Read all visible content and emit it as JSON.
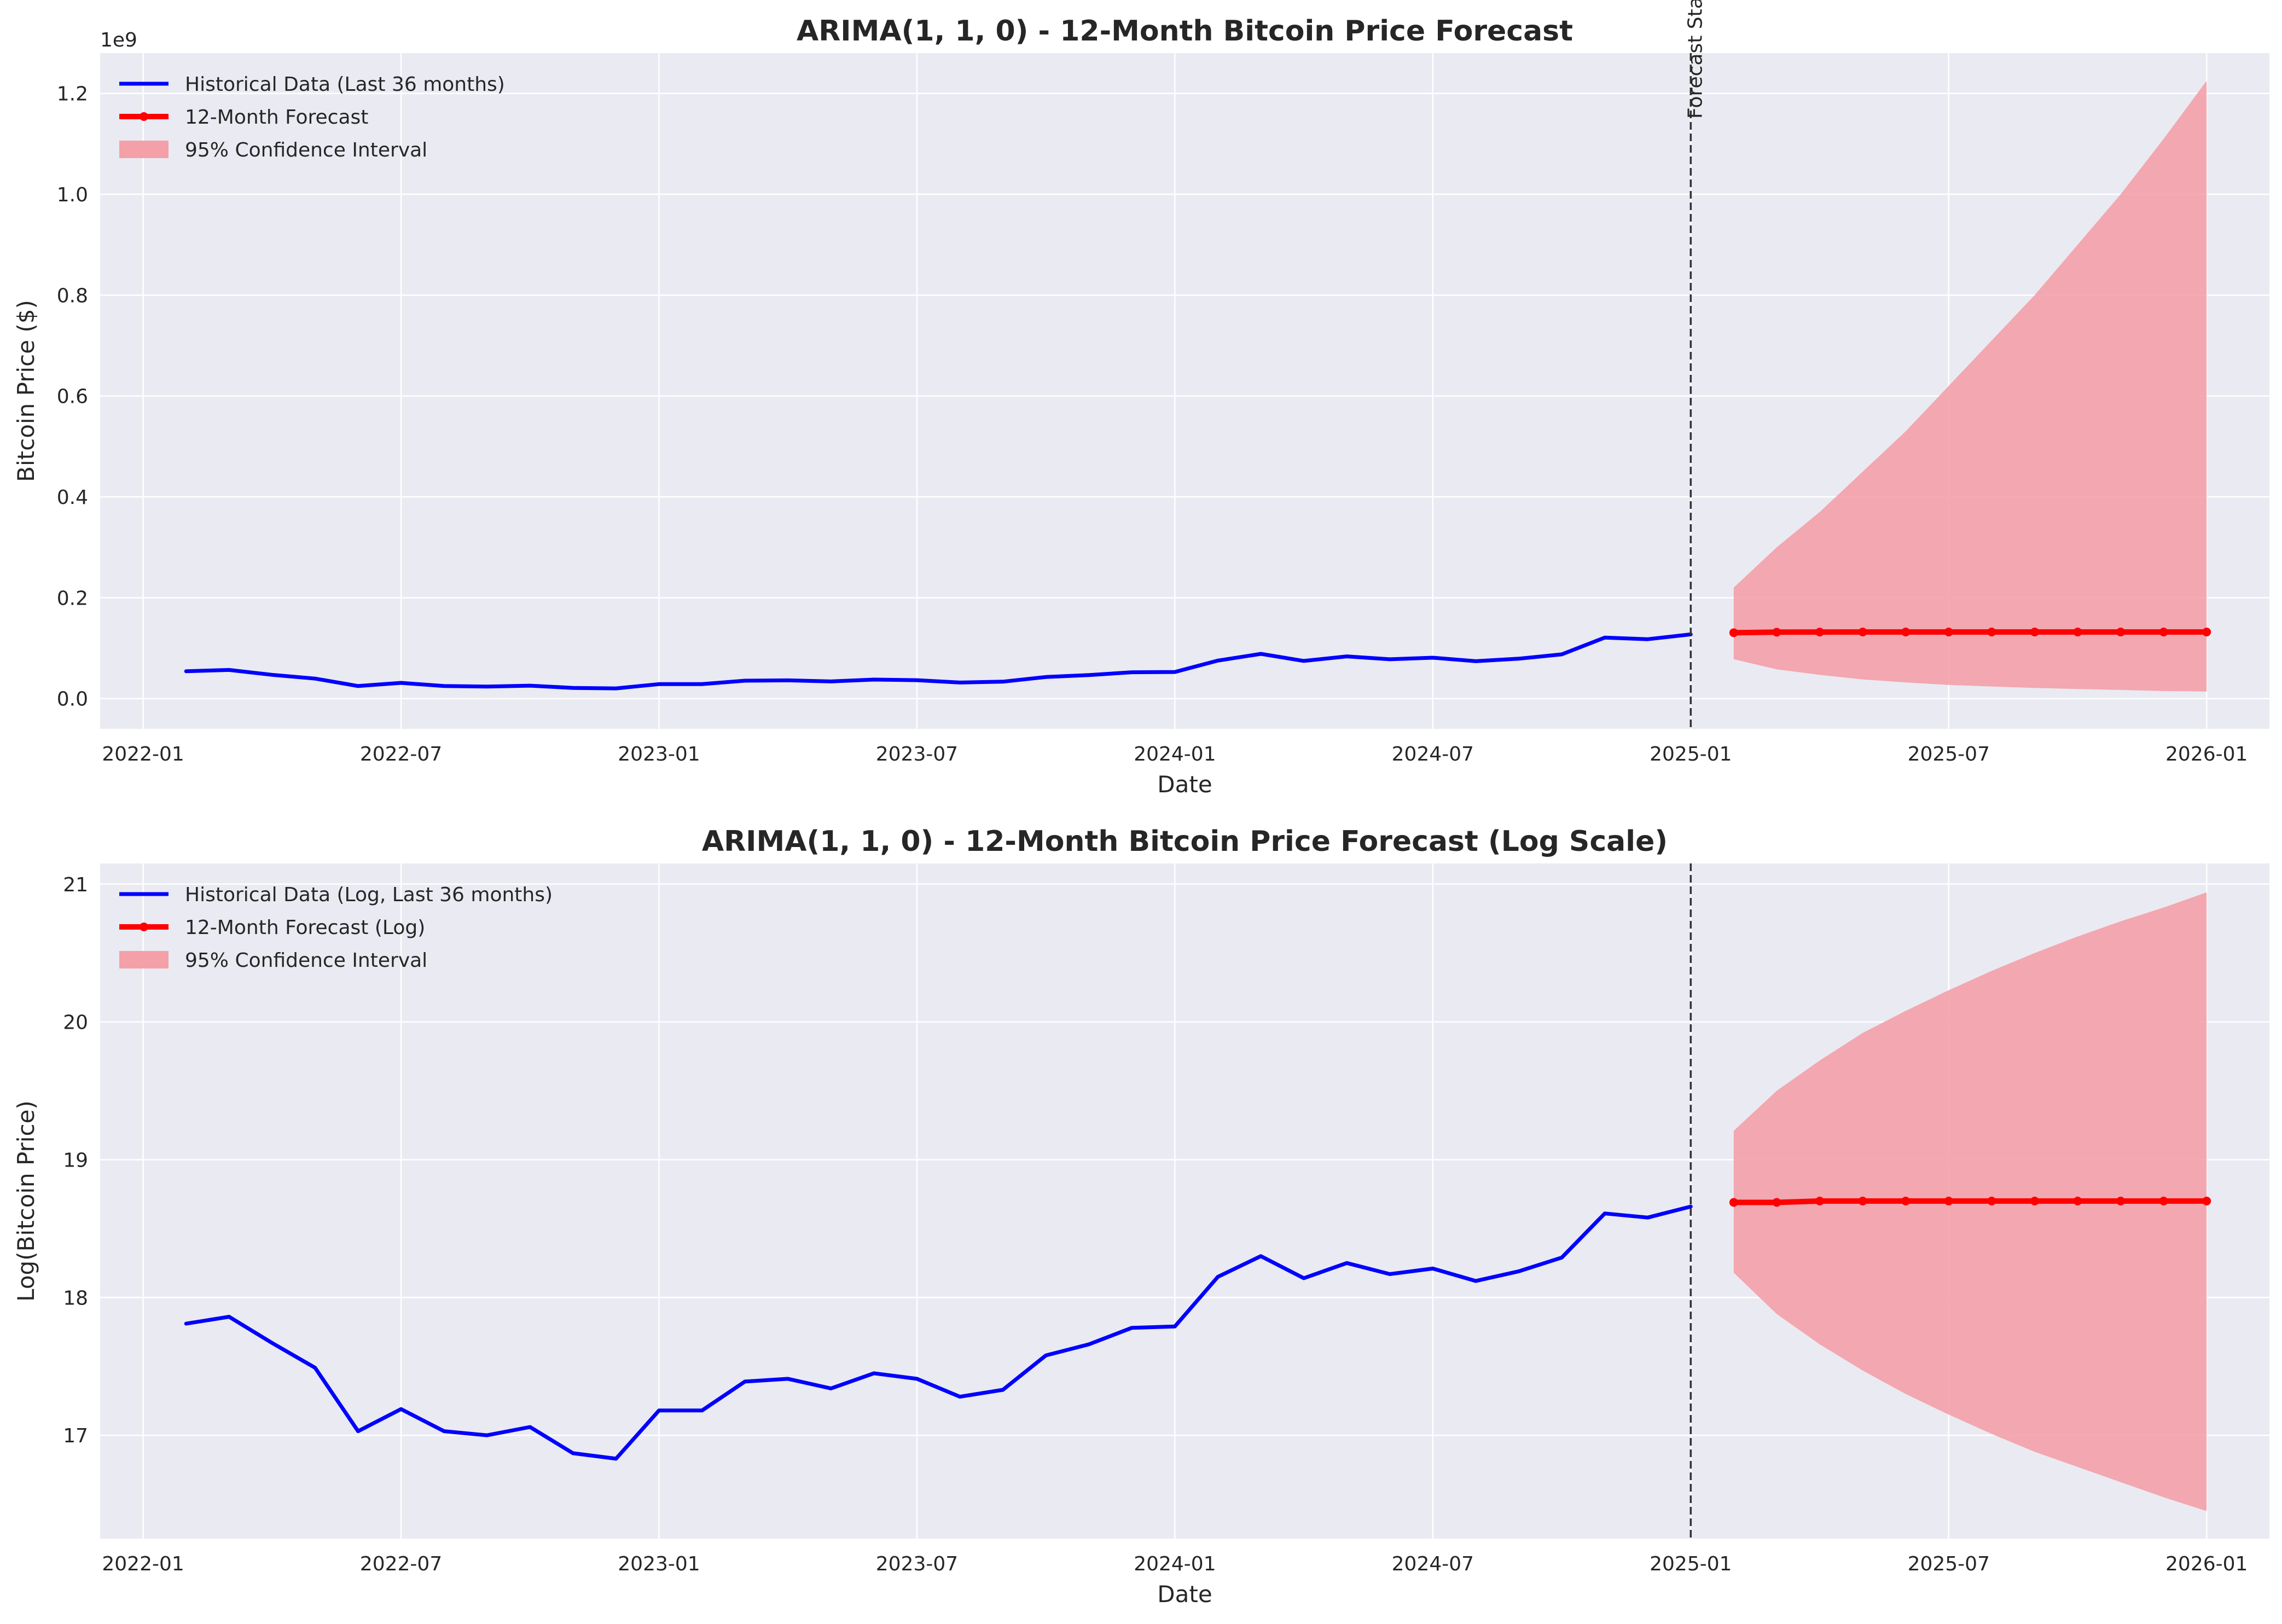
{
  "colors": {
    "axes_bg": "#eaeaf2",
    "grid": "#ffffff",
    "historical": "#0000ff",
    "forecast": "#ff0000",
    "ci_fill": "#f4a0a8",
    "vline": "#333333"
  },
  "chart_data": [
    {
      "type": "line",
      "title": "ARIMA(1, 1, 0) - 12-Month Bitcoin Price Forecast",
      "xlabel": "Date",
      "ylabel": "Bitcoin Price ($)",
      "y_offset_label": "1e9",
      "x_ticks": [
        "2022-01",
        "2022-07",
        "2023-01",
        "2023-07",
        "2024-01",
        "2024-07",
        "2025-01",
        "2025-07",
        "2026-01"
      ],
      "y_ticks": [
        "0.0",
        "0.2",
        "0.4",
        "0.6",
        "0.8",
        "1.0",
        "1.2"
      ],
      "ylim": [
        -0.06,
        1.28
      ],
      "xlim": [
        "2021-12-01",
        "2026-02-15"
      ],
      "grid": true,
      "legend": "top-left",
      "vline": {
        "x": "2025-01",
        "label": "Forecast Start"
      },
      "series": [
        {
          "name": "Historical Data (Last 36 months)",
          "style": "line",
          "x": [
            "2022-02",
            "2022-03",
            "2022-04",
            "2022-05",
            "2022-06",
            "2022-07",
            "2022-08",
            "2022-09",
            "2022-10",
            "2022-11",
            "2022-12",
            "2023-01",
            "2023-02",
            "2023-03",
            "2023-04",
            "2023-05",
            "2023-06",
            "2023-07",
            "2023-08",
            "2023-09",
            "2023-10",
            "2023-11",
            "2023-12",
            "2024-01",
            "2024-02",
            "2024-03",
            "2024-04",
            "2024-05",
            "2024-06",
            "2024-07",
            "2024-08",
            "2024-09",
            "2024-10",
            "2024-11",
            "2024-12",
            "2025-01"
          ],
          "values": [
            0.0541,
            0.0568,
            0.0471,
            0.0396,
            0.0248,
            0.0311,
            0.0249,
            0.0239,
            0.0256,
            0.0212,
            0.0202,
            0.0287,
            0.0288,
            0.0355,
            0.0361,
            0.034,
            0.0377,
            0.0365,
            0.0318,
            0.0335,
            0.0427,
            0.0466,
            0.0522,
            0.0527,
            0.0753,
            0.0886,
            0.0747,
            0.0837,
            0.0779,
            0.0811,
            0.0741,
            0.0791,
            0.0877,
            0.121,
            0.1177,
            0.1273
          ]
        },
        {
          "name": "12-Month Forecast",
          "style": "line-markers",
          "x": [
            "2025-02",
            "2025-03",
            "2025-04",
            "2025-05",
            "2025-06",
            "2025-07",
            "2025-08",
            "2025-09",
            "2025-10",
            "2025-11",
            "2025-12",
            "2026-01"
          ],
          "values": [
            0.1306,
            0.1317,
            0.1319,
            0.132,
            0.132,
            0.132,
            0.132,
            0.132,
            0.132,
            0.132,
            0.132,
            0.132
          ]
        },
        {
          "name": "95% Confidence Interval",
          "style": "band",
          "x": [
            "2025-02",
            "2025-03",
            "2025-04",
            "2025-05",
            "2025-06",
            "2025-07",
            "2025-08",
            "2025-09",
            "2025-10",
            "2025-11",
            "2025-12",
            "2026-01"
          ],
          "lower": [
            0.078,
            0.058,
            0.047,
            0.038,
            0.032,
            0.027,
            0.024,
            0.021,
            0.019,
            0.017,
            0.015,
            0.014
          ],
          "upper": [
            0.22,
            0.3,
            0.37,
            0.45,
            0.53,
            0.62,
            0.71,
            0.8,
            0.9,
            1.0,
            1.11,
            1.225
          ]
        }
      ]
    },
    {
      "type": "line",
      "title": "ARIMA(1, 1, 0) - 12-Month Bitcoin Price Forecast (Log Scale)",
      "xlabel": "Date",
      "ylabel": "Log(Bitcoin Price)",
      "x_ticks": [
        "2022-01",
        "2022-07",
        "2023-01",
        "2023-07",
        "2024-01",
        "2024-07",
        "2025-01",
        "2025-07",
        "2026-01"
      ],
      "y_ticks": [
        "17",
        "18",
        "19",
        "20",
        "21"
      ],
      "ylim": [
        16.25,
        21.15
      ],
      "xlim": [
        "2021-12-01",
        "2026-02-15"
      ],
      "grid": true,
      "legend": "top-left",
      "vline": {
        "x": "2025-01",
        "label": ""
      },
      "series": [
        {
          "name": "Historical Data (Log, Last 36 months)",
          "style": "line",
          "x": [
            "2022-02",
            "2022-03",
            "2022-04",
            "2022-05",
            "2022-06",
            "2022-07",
            "2022-08",
            "2022-09",
            "2022-10",
            "2022-11",
            "2022-12",
            "2023-01",
            "2023-02",
            "2023-03",
            "2023-04",
            "2023-05",
            "2023-06",
            "2023-07",
            "2023-08",
            "2023-09",
            "2023-10",
            "2023-11",
            "2023-12",
            "2024-01",
            "2024-02",
            "2024-03",
            "2024-04",
            "2024-05",
            "2024-06",
            "2024-07",
            "2024-08",
            "2024-09",
            "2024-10",
            "2024-11",
            "2024-12",
            "2025-01"
          ],
          "values": [
            17.81,
            17.86,
            17.67,
            17.49,
            17.03,
            17.19,
            17.03,
            17.0,
            17.06,
            16.87,
            16.83,
            17.18,
            17.18,
            17.39,
            17.41,
            17.34,
            17.45,
            17.41,
            17.28,
            17.33,
            17.58,
            17.66,
            17.78,
            17.79,
            18.15,
            18.3,
            18.14,
            18.25,
            18.17,
            18.21,
            18.12,
            18.19,
            18.29,
            18.61,
            18.58,
            18.66
          ]
        },
        {
          "name": "12-Month Forecast (Log)",
          "style": "line-markers",
          "x": [
            "2025-02",
            "2025-03",
            "2025-04",
            "2025-05",
            "2025-06",
            "2025-07",
            "2025-08",
            "2025-09",
            "2025-10",
            "2025-11",
            "2025-12",
            "2026-01"
          ],
          "values": [
            18.69,
            18.69,
            18.7,
            18.7,
            18.7,
            18.7,
            18.7,
            18.7,
            18.7,
            18.7,
            18.7,
            18.7
          ]
        },
        {
          "name": "95% Confidence Interval",
          "style": "band",
          "x": [
            "2025-02",
            "2025-03",
            "2025-04",
            "2025-05",
            "2025-06",
            "2025-07",
            "2025-08",
            "2025-09",
            "2025-10",
            "2025-11",
            "2025-12",
            "2026-01"
          ],
          "lower": [
            18.18,
            17.88,
            17.66,
            17.47,
            17.3,
            17.15,
            17.01,
            16.88,
            16.77,
            16.66,
            16.55,
            16.45
          ],
          "upper": [
            19.21,
            19.5,
            19.72,
            19.92,
            20.08,
            20.23,
            20.37,
            20.5,
            20.62,
            20.73,
            20.83,
            20.94
          ]
        }
      ]
    }
  ]
}
